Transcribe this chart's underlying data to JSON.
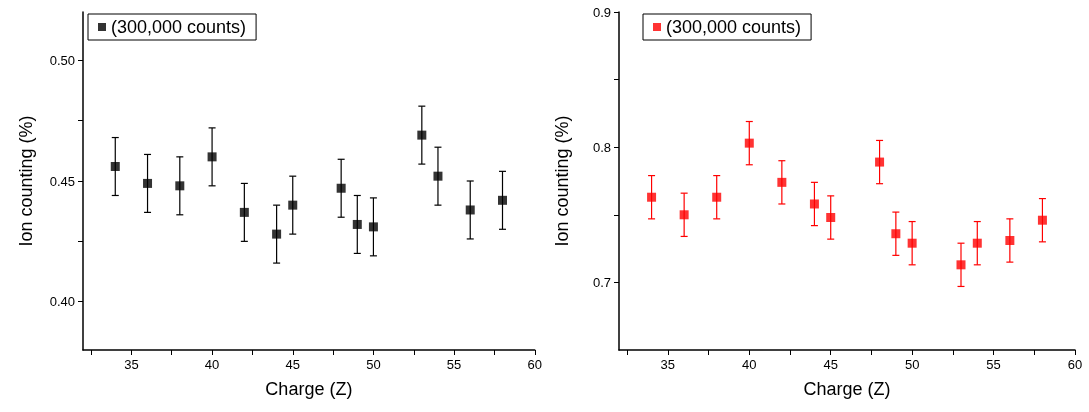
{
  "chart_data": [
    {
      "type": "scatter",
      "xlabel": "Charge (Z)",
      "ylabel": "Ion counting (%)",
      "legend": "top left",
      "marker": "square",
      "grid": false,
      "x": [
        34,
        36,
        38,
        40,
        42,
        44,
        45,
        48,
        49,
        50,
        53,
        54,
        56,
        58
      ],
      "series": [
        {
          "name": "(300,000 counts)",
          "color": "#000000",
          "values": [
            0.456,
            0.449,
            0.448,
            0.46,
            0.437,
            0.428,
            0.44,
            0.447,
            0.432,
            0.431,
            0.469,
            0.452,
            0.438,
            0.442
          ],
          "errors": [
            0.012,
            0.012,
            0.012,
            0.012,
            0.012,
            0.012,
            0.012,
            0.012,
            0.012,
            0.012,
            0.012,
            0.012,
            0.012,
            0.012
          ]
        }
      ],
      "xlim": [
        32,
        60
      ],
      "xticks": [
        {
          "value": 32.5,
          "label": null
        },
        35,
        {
          "value": 37.5,
          "label": null
        },
        40,
        {
          "value": 42.5,
          "label": null
        },
        45,
        {
          "value": 47.5,
          "label": null
        },
        50,
        {
          "value": 52.5,
          "label": null
        },
        55,
        {
          "value": 57.5,
          "label": null
        },
        60
      ],
      "ylim": [
        0.38,
        0.52
      ],
      "yticks": [
        {
          "value": 0.4,
          "label": "0.40"
        },
        {
          "value": 0.425,
          "label": null
        },
        {
          "value": 0.45,
          "label": "0.45"
        },
        {
          "value": 0.475,
          "label": null
        },
        {
          "value": 0.5,
          "label": "0.50"
        }
      ]
    },
    {
      "type": "scatter",
      "xlabel": "Charge (Z)",
      "ylabel": "Ion counting (%)",
      "legend": "top left",
      "marker": "square",
      "grid": false,
      "x": [
        34,
        36,
        38,
        40,
        42,
        44,
        45,
        48,
        49,
        50,
        53,
        54,
        56,
        58
      ],
      "series": [
        {
          "name": "(300,000 counts)",
          "color": "#ff0000",
          "values": [
            0.763,
            0.75,
            0.763,
            0.803,
            0.774,
            0.758,
            0.748,
            0.789,
            0.736,
            0.729,
            0.713,
            0.729,
            0.731,
            0.746
          ],
          "errors": [
            0.016,
            0.016,
            0.016,
            0.016,
            0.016,
            0.016,
            0.016,
            0.016,
            0.016,
            0.016,
            0.016,
            0.016,
            0.016,
            0.016
          ]
        }
      ],
      "xlim": [
        32,
        60
      ],
      "xticks": [
        {
          "value": 32.5,
          "label": null
        },
        35,
        {
          "value": 37.5,
          "label": null
        },
        40,
        {
          "value": 42.5,
          "label": null
        },
        45,
        {
          "value": 47.5,
          "label": null
        },
        50,
        {
          "value": 52.5,
          "label": null
        },
        55,
        {
          "value": 57.5,
          "label": null
        },
        60
      ],
      "ylim": [
        0.65,
        0.9
      ],
      "yticks": [
        0.7,
        {
          "value": 0.75,
          "label": null
        },
        0.8,
        {
          "value": 0.85,
          "label": null
        },
        0.9
      ]
    }
  ]
}
